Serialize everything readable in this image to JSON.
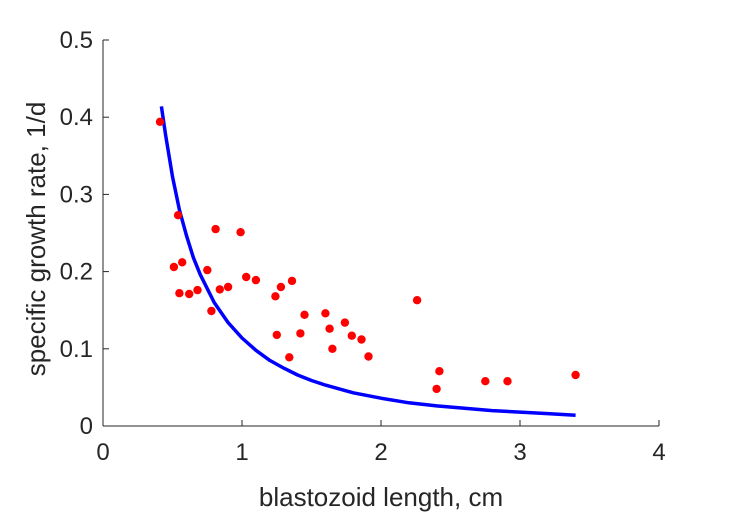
{
  "chart_data": {
    "type": "scatter",
    "xlabel": "blastozoid length, cm",
    "ylabel": "specific growth rate, 1/d",
    "xlim": [
      0,
      4
    ],
    "ylim": [
      0,
      0.5
    ],
    "xticks": [
      0,
      1,
      2,
      3,
      4
    ],
    "xtick_labels": [
      "0",
      "1",
      "2",
      "3",
      "4"
    ],
    "yticks": [
      0,
      0.1,
      0.2,
      0.3,
      0.4,
      0.5
    ],
    "ytick_labels": [
      "0",
      "0.1",
      "0.2",
      "0.3",
      "0.4",
      "0.5"
    ],
    "grid": false,
    "series": [
      {
        "type": "scatter",
        "color": "#ff0000",
        "points": [
          [
            0.41,
            0.394
          ],
          [
            0.54,
            0.273
          ],
          [
            0.51,
            0.206
          ],
          [
            0.57,
            0.212
          ],
          [
            0.55,
            0.172
          ],
          [
            0.62,
            0.171
          ],
          [
            0.68,
            0.176
          ],
          [
            0.75,
            0.202
          ],
          [
            0.78,
            0.149
          ],
          [
            0.81,
            0.255
          ],
          [
            0.84,
            0.177
          ],
          [
            0.9,
            0.18
          ],
          [
            0.99,
            0.251
          ],
          [
            1.03,
            0.193
          ],
          [
            1.1,
            0.189
          ],
          [
            1.24,
            0.168
          ],
          [
            1.25,
            0.118
          ],
          [
            1.28,
            0.18
          ],
          [
            1.34,
            0.089
          ],
          [
            1.36,
            0.188
          ],
          [
            1.42,
            0.12
          ],
          [
            1.45,
            0.144
          ],
          [
            1.6,
            0.146
          ],
          [
            1.63,
            0.126
          ],
          [
            1.65,
            0.1
          ],
          [
            1.74,
            0.134
          ],
          [
            1.79,
            0.117
          ],
          [
            1.86,
            0.112
          ],
          [
            1.91,
            0.09
          ],
          [
            2.26,
            0.163
          ],
          [
            2.4,
            0.048
          ],
          [
            2.42,
            0.071
          ],
          [
            2.75,
            0.058
          ],
          [
            2.91,
            0.058
          ],
          [
            3.4,
            0.066
          ]
        ]
      },
      {
        "type": "line",
        "color": "#0000ff",
        "x": [
          0.42,
          0.45,
          0.5,
          0.55,
          0.6,
          0.65,
          0.7,
          0.8,
          0.9,
          1.0,
          1.1,
          1.2,
          1.3,
          1.4,
          1.5,
          1.6,
          1.8,
          2.0,
          2.2,
          2.4,
          2.6,
          2.8,
          3.0,
          3.2,
          3.4
        ],
        "y": [
          0.414,
          0.377,
          0.323,
          0.28,
          0.247,
          0.218,
          0.196,
          0.16,
          0.134,
          0.114,
          0.098,
          0.085,
          0.075,
          0.066,
          0.059,
          0.053,
          0.043,
          0.036,
          0.03,
          0.026,
          0.023,
          0.02,
          0.018,
          0.016,
          0.014
        ]
      }
    ]
  }
}
